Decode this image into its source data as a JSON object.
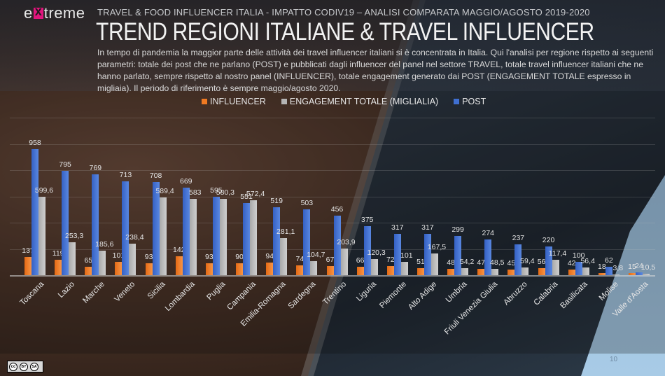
{
  "brand": {
    "logo": "extreme",
    "logo_pre": "e",
    "logo_post": "treme"
  },
  "header": {
    "subtitle": "TRAVEL & FOOD INFLUENCER ITALIA  - IMPATTO CODIV19 – ANALISI COMPARATA MAGGIO/AGOSTO 2019-2020",
    "title": "TREND REGIONI ITALIANE & TRAVEL INFLUENCER",
    "description": "In tempo di pandemia la maggior parte delle attività dei travel  influencer italiani si è concentrata in Italia. Qui l'analisi per regione rispetto ai seguenti parametri: totale dei post che ne parlano (POST) e pubblicati dagli influencer del panel nel settore TRAVEL, totale travel influencer italiani che ne hanno parlato, sempre rispetto al nostro panel (INFLUENCER), totale engagement generato dai POST (ENGAGEMENT TOTALE espresso in migliaia). Il periodo di riferimento è sempre maggio/agosto 2020."
  },
  "legend": [
    {
      "label": "INFLUENCER",
      "color": "#f07a22"
    },
    {
      "label": "ENGAGEMENT TOTALE (MIGLIALIA)",
      "color": "#b4b4b4"
    },
    {
      "label": "POST",
      "color": "#3f6fd1"
    }
  ],
  "chart_data": {
    "type": "bar",
    "title": "TREND REGIONI ITALIANE & TRAVEL INFLUENCER",
    "xlabel": "",
    "ylabel": "",
    "ylim": [
      0,
      1200
    ],
    "grid": true,
    "legend_position": "top",
    "categories": [
      "Toscana",
      "Lazio",
      "Marche",
      "Veneto",
      "Sicilia",
      "Lombardia",
      "Puglia",
      "Campania",
      "Emilia-Romagna",
      "Sardegna",
      "Trentino",
      "Liguria",
      "Piemonte",
      "Alto Adige",
      "Umbria",
      "Friuli Venezia Giulia",
      "Abruzzo",
      "Calabria",
      "Basilicata",
      "Molise",
      "Valle d'Aosta"
    ],
    "series": [
      {
        "name": "INFLUENCER",
        "color": "#f07a22",
        "values": [
          137,
          119,
          65,
          101,
          93,
          142,
          93,
          90,
          94,
          74,
          67,
          66,
          72,
          51,
          48,
          47,
          45,
          56,
          42,
          18,
          15
        ],
        "labels": [
          "137",
          "119",
          "65",
          "101",
          "93",
          "142",
          "93",
          "90",
          "94",
          "74",
          "67",
          "66",
          "72",
          "51",
          "48",
          "47",
          "45",
          "56",
          "42",
          "18",
          "15"
        ]
      },
      {
        "name": "POST",
        "color": "#3f6fd1",
        "values": [
          958,
          795,
          769,
          713,
          708,
          669,
          595,
          551,
          519,
          503,
          456,
          375,
          317,
          317,
          299,
          274,
          237,
          220,
          100,
          62,
          24
        ],
        "labels": [
          "958",
          "795",
          "769",
          "713",
          "708",
          "669",
          "595",
          "551",
          "519",
          "503",
          "456",
          "375",
          "317",
          "317",
          "299",
          "274",
          "237",
          "220",
          "100",
          "62",
          "24"
        ]
      },
      {
        "name": "ENGAGEMENT TOTALE (MIGLIALIA)",
        "color": "#b4b4b4",
        "values": [
          599.6,
          253.3,
          185.6,
          238.4,
          589.4,
          583,
          580.3,
          572.4,
          281.1,
          104.7,
          203.9,
          120.3,
          101,
          167.5,
          54.2,
          48.5,
          59.4,
          117.4,
          56.4,
          3.8,
          10.5
        ],
        "labels": [
          "599,6",
          "253,3",
          "185,6",
          "238,4",
          "589,4",
          "583",
          "580,3",
          "572,4",
          "281,1",
          "104,7",
          "203,9",
          "120,3",
          "101",
          "167,5",
          "54,2",
          "48,5",
          "59,4",
          "117,4",
          "56,4",
          "3,8",
          "10,5"
        ]
      }
    ]
  },
  "footer": {
    "license": "CC BY SA",
    "cc_by": "BY",
    "cc_sa": "SA",
    "page_number": "10"
  }
}
